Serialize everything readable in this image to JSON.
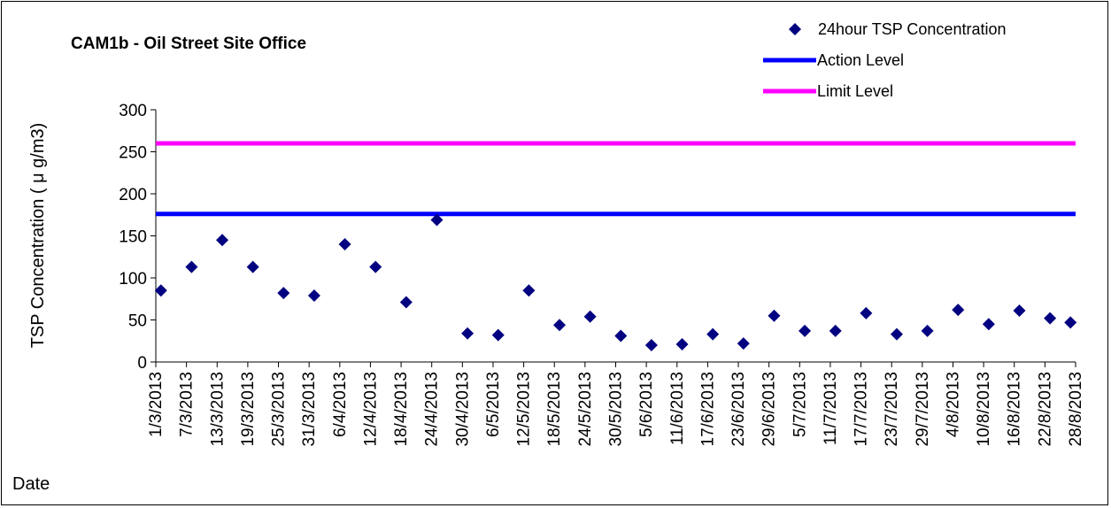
{
  "chart_data": {
    "type": "scatter",
    "title": "CAM1b - Oil Street Site Office",
    "xlabel": "Date",
    "ylabel": "TSP Concentration ( μ g/m3)",
    "ylim": [
      0,
      300
    ],
    "yticks": [
      0,
      50,
      100,
      150,
      200,
      250,
      300
    ],
    "xlim": [
      "1/3/2013",
      "28/8/2013"
    ],
    "x_tick_labels": [
      "1/3/2013",
      "7/3/2013",
      "13/3/2013",
      "19/3/2013",
      "25/3/2013",
      "31/3/2013",
      "6/4/2013",
      "12/4/2013",
      "18/4/2013",
      "24/4/2013",
      "30/4/2013",
      "6/5/2013",
      "12/5/2013",
      "18/5/2013",
      "24/5/2013",
      "30/5/2013",
      "5/6/2013",
      "11/6/2013",
      "17/6/2013",
      "23/6/2013",
      "29/6/2013",
      "5/7/2013",
      "11/7/2013",
      "17/7/2013",
      "23/7/2013",
      "29/7/2013",
      "4/8/2013",
      "10/8/2013",
      "16/8/2013",
      "22/8/2013",
      "28/8/2013"
    ],
    "grid": false,
    "legend_position": "top-right",
    "series": [
      {
        "name": "24hour TSP Concentration",
        "type": "scatter",
        "marker": "diamond",
        "color": "#000080",
        "points": [
          {
            "x": "2/3/2013",
            "y": 85
          },
          {
            "x": "8/3/2013",
            "y": 113
          },
          {
            "x": "14/3/2013",
            "y": 145
          },
          {
            "x": "20/3/2013",
            "y": 113
          },
          {
            "x": "26/3/2013",
            "y": 82
          },
          {
            "x": "1/4/2013",
            "y": 79
          },
          {
            "x": "7/4/2013",
            "y": 140
          },
          {
            "x": "13/4/2013",
            "y": 113
          },
          {
            "x": "19/4/2013",
            "y": 71
          },
          {
            "x": "25/4/2013",
            "y": 169
          },
          {
            "x": "1/5/2013",
            "y": 34
          },
          {
            "x": "7/5/2013",
            "y": 32
          },
          {
            "x": "13/5/2013",
            "y": 85
          },
          {
            "x": "19/5/2013",
            "y": 44
          },
          {
            "x": "25/5/2013",
            "y": 54
          },
          {
            "x": "31/5/2013",
            "y": 31
          },
          {
            "x": "6/6/2013",
            "y": 20
          },
          {
            "x": "12/6/2013",
            "y": 21
          },
          {
            "x": "18/6/2013",
            "y": 33
          },
          {
            "x": "24/6/2013",
            "y": 22
          },
          {
            "x": "30/6/2013",
            "y": 55
          },
          {
            "x": "6/7/2013",
            "y": 37
          },
          {
            "x": "12/7/2013",
            "y": 37
          },
          {
            "x": "18/7/2013",
            "y": 58
          },
          {
            "x": "24/7/2013",
            "y": 33
          },
          {
            "x": "30/7/2013",
            "y": 37
          },
          {
            "x": "5/8/2013",
            "y": 62
          },
          {
            "x": "11/8/2013",
            "y": 45
          },
          {
            "x": "17/8/2013",
            "y": 61
          },
          {
            "x": "23/8/2013",
            "y": 52
          },
          {
            "x": "27/8/2013",
            "y": 47
          }
        ]
      },
      {
        "name": "Action Level",
        "type": "line",
        "color": "#0000FF",
        "value": 176
      },
      {
        "name": "Limit Level",
        "type": "line",
        "color": "#FF00FF",
        "value": 260
      }
    ]
  }
}
